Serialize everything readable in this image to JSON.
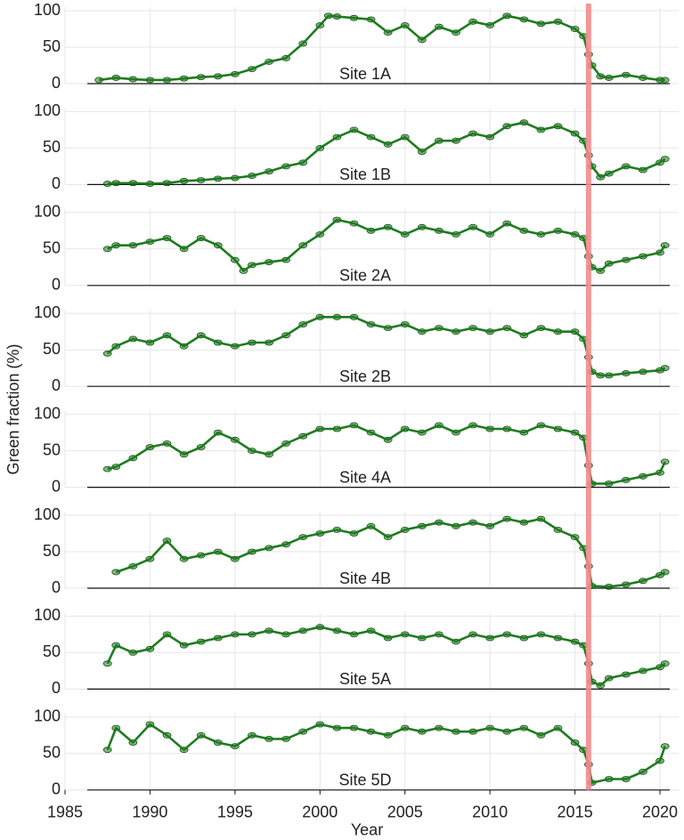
{
  "ylabel": "Green fraction (%)",
  "marker_line": {
    "x": 2015.8,
    "color": "#f28b8b"
  },
  "chart_data": [
    {
      "type": "line",
      "label": "Site 1A",
      "color": "#1e7b1e",
      "xlim": [
        1985,
        2021.1
      ],
      "xticks": [
        1985,
        1990,
        1995,
        2000,
        2005,
        2010,
        2015,
        2020
      ],
      "ylim": [
        0,
        100
      ],
      "yticks": [
        0,
        50,
        100
      ],
      "grid": true,
      "x": [
        1987,
        1988,
        1989,
        1990,
        1991,
        1992,
        1993,
        1994,
        1995,
        1996,
        1997,
        1998,
        1999,
        2000,
        2000.5,
        2001,
        2002,
        2003,
        2004,
        2005,
        2006,
        2007,
        2008,
        2009,
        2010,
        2011,
        2012,
        2013,
        2014,
        2015,
        2015.5,
        2015.8,
        2016,
        2016.5,
        2017,
        2018,
        2019,
        2020,
        2020.3
      ],
      "values": [
        5,
        8,
        6,
        5,
        5,
        7,
        9,
        10,
        13,
        20,
        30,
        35,
        55,
        80,
        93,
        92,
        90,
        88,
        70,
        80,
        60,
        78,
        70,
        85,
        80,
        93,
        88,
        82,
        85,
        75,
        65,
        40,
        25,
        10,
        8,
        12,
        8,
        5,
        5
      ]
    },
    {
      "type": "line",
      "label": "Site 1B",
      "color": "#1e7b1e",
      "xlim": [
        1985,
        2021.1
      ],
      "xticks": [
        1985,
        1990,
        1995,
        2000,
        2005,
        2010,
        2015,
        2020
      ],
      "ylim": [
        0,
        100
      ],
      "yticks": [
        0,
        50,
        100
      ],
      "grid": true,
      "x": [
        1987.5,
        1988,
        1989,
        1990,
        1991,
        1992,
        1993,
        1994,
        1995,
        1996,
        1997,
        1998,
        1999,
        2000,
        2001,
        2002,
        2003,
        2004,
        2005,
        2006,
        2007,
        2008,
        2009,
        2010,
        2011,
        2012,
        2013,
        2014,
        2015,
        2015.5,
        2015.8,
        2016,
        2016.5,
        2017,
        2018,
        2019,
        2020,
        2020.3
      ],
      "values": [
        1,
        2,
        2,
        1,
        2,
        5,
        6,
        8,
        9,
        12,
        18,
        25,
        30,
        50,
        65,
        75,
        65,
        55,
        65,
        45,
        60,
        60,
        70,
        65,
        80,
        85,
        75,
        80,
        70,
        60,
        40,
        25,
        10,
        15,
        25,
        20,
        30,
        35
      ]
    },
    {
      "type": "line",
      "label": "Site 2A",
      "color": "#1e7b1e",
      "xlim": [
        1985,
        2021.1
      ],
      "xticks": [
        1985,
        1990,
        1995,
        2000,
        2005,
        2010,
        2015,
        2020
      ],
      "ylim": [
        0,
        100
      ],
      "yticks": [
        0,
        50,
        100
      ],
      "grid": true,
      "x": [
        1987.5,
        1988,
        1989,
        1990,
        1991,
        1992,
        1993,
        1994,
        1995,
        1995.5,
        1996,
        1997,
        1998,
        1999,
        2000,
        2001,
        2002,
        2003,
        2004,
        2005,
        2006,
        2007,
        2008,
        2009,
        2010,
        2011,
        2012,
        2013,
        2014,
        2015,
        2015.5,
        2015.8,
        2016,
        2016.5,
        2017,
        2018,
        2019,
        2020,
        2020.3
      ],
      "values": [
        50,
        55,
        55,
        60,
        65,
        50,
        65,
        55,
        35,
        20,
        28,
        32,
        35,
        55,
        70,
        90,
        85,
        75,
        80,
        70,
        80,
        75,
        70,
        80,
        70,
        85,
        75,
        70,
        75,
        70,
        65,
        40,
        25,
        20,
        30,
        35,
        40,
        45,
        55
      ]
    },
    {
      "type": "line",
      "label": "Site 2B",
      "color": "#1e7b1e",
      "xlim": [
        1985,
        2021.1
      ],
      "xticks": [
        1985,
        1990,
        1995,
        2000,
        2005,
        2010,
        2015,
        2020
      ],
      "ylim": [
        0,
        100
      ],
      "yticks": [
        0,
        50,
        100
      ],
      "grid": true,
      "x": [
        1987.5,
        1988,
        1989,
        1990,
        1991,
        1992,
        1993,
        1994,
        1995,
        1996,
        1997,
        1998,
        1999,
        2000,
        2001,
        2002,
        2003,
        2004,
        2005,
        2006,
        2007,
        2008,
        2009,
        2010,
        2011,
        2012,
        2013,
        2014,
        2015,
        2015.5,
        2015.8,
        2016,
        2016.5,
        2017,
        2018,
        2019,
        2020,
        2020.3
      ],
      "values": [
        45,
        55,
        65,
        60,
        70,
        55,
        70,
        60,
        55,
        60,
        60,
        70,
        85,
        95,
        95,
        95,
        85,
        80,
        85,
        75,
        80,
        75,
        80,
        75,
        80,
        70,
        80,
        75,
        75,
        65,
        40,
        20,
        15,
        15,
        18,
        20,
        22,
        25
      ]
    },
    {
      "type": "line",
      "label": "Site 4A",
      "color": "#1e7b1e",
      "xlim": [
        1985,
        2021.1
      ],
      "xticks": [
        1985,
        1990,
        1995,
        2000,
        2005,
        2010,
        2015,
        2020
      ],
      "ylim": [
        0,
        100
      ],
      "yticks": [
        0,
        50,
        100
      ],
      "grid": true,
      "x": [
        1987.5,
        1988,
        1989,
        1990,
        1991,
        1992,
        1993,
        1994,
        1995,
        1996,
        1997,
        1998,
        1999,
        2000,
        2001,
        2002,
        2003,
        2004,
        2005,
        2006,
        2007,
        2008,
        2009,
        2010,
        2011,
        2012,
        2013,
        2014,
        2015,
        2015.5,
        2015.8,
        2016,
        2017,
        2018,
        2019,
        2020,
        2020.3
      ],
      "values": [
        25,
        28,
        40,
        55,
        60,
        45,
        55,
        75,
        65,
        50,
        45,
        60,
        70,
        80,
        80,
        85,
        75,
        65,
        80,
        75,
        85,
        75,
        85,
        80,
        80,
        75,
        85,
        80,
        75,
        68,
        30,
        5,
        5,
        10,
        15,
        20,
        35
      ]
    },
    {
      "type": "line",
      "label": "Site 4B",
      "color": "#1e7b1e",
      "xlim": [
        1985,
        2021.1
      ],
      "xticks": [
        1985,
        1990,
        1995,
        2000,
        2005,
        2010,
        2015,
        2020
      ],
      "ylim": [
        0,
        100
      ],
      "yticks": [
        0,
        50,
        100
      ],
      "grid": true,
      "x": [
        1988,
        1989,
        1990,
        1991,
        1992,
        1993,
        1994,
        1995,
        1996,
        1997,
        1998,
        1999,
        2000,
        2001,
        2002,
        2003,
        2004,
        2005,
        2006,
        2007,
        2008,
        2009,
        2010,
        2011,
        2012,
        2013,
        2014,
        2015,
        2015.5,
        2015.8,
        2016,
        2017,
        2018,
        2019,
        2020,
        2020.3
      ],
      "values": [
        22,
        30,
        40,
        65,
        40,
        45,
        50,
        40,
        50,
        55,
        60,
        70,
        75,
        80,
        75,
        85,
        70,
        80,
        85,
        90,
        85,
        90,
        85,
        95,
        90,
        95,
        80,
        70,
        55,
        30,
        3,
        2,
        5,
        10,
        18,
        22
      ]
    },
    {
      "type": "line",
      "label": "Site 5A",
      "color": "#1e7b1e",
      "xlim": [
        1985,
        2021.1
      ],
      "xticks": [
        1985,
        1990,
        1995,
        2000,
        2005,
        2010,
        2015,
        2020
      ],
      "ylim": [
        0,
        100
      ],
      "yticks": [
        0,
        50,
        100
      ],
      "grid": true,
      "x": [
        1987.5,
        1988,
        1989,
        1990,
        1991,
        1992,
        1993,
        1994,
        1995,
        1996,
        1997,
        1998,
        1999,
        2000,
        2001,
        2002,
        2003,
        2004,
        2005,
        2006,
        2007,
        2008,
        2009,
        2010,
        2011,
        2012,
        2013,
        2014,
        2015,
        2015.5,
        2015.8,
        2016,
        2016.5,
        2017,
        2018,
        2019,
        2020,
        2020.3
      ],
      "values": [
        35,
        60,
        50,
        55,
        75,
        60,
        65,
        70,
        75,
        75,
        80,
        75,
        80,
        85,
        80,
        75,
        80,
        70,
        75,
        70,
        75,
        65,
        75,
        70,
        75,
        70,
        75,
        70,
        65,
        60,
        35,
        10,
        5,
        15,
        20,
        25,
        30,
        35
      ]
    },
    {
      "type": "line",
      "label": "Site 5D",
      "color": "#1e7b1e",
      "xlim": [
        1985,
        2021.1
      ],
      "xticks": [
        1985,
        1990,
        1995,
        2000,
        2005,
        2010,
        2015,
        2020
      ],
      "ylim": [
        0,
        100
      ],
      "yticks": [
        0,
        50,
        100
      ],
      "grid": true,
      "xlabel": "Year",
      "x": [
        1987.5,
        1988,
        1989,
        1990,
        1991,
        1992,
        1993,
        1994,
        1995,
        1996,
        1997,
        1998,
        1999,
        2000,
        2001,
        2002,
        2003,
        2004,
        2005,
        2006,
        2007,
        2008,
        2009,
        2010,
        2011,
        2012,
        2013,
        2014,
        2015,
        2015.5,
        2015.8,
        2016,
        2017,
        2018,
        2019,
        2020,
        2020.3
      ],
      "values": [
        55,
        85,
        65,
        90,
        75,
        55,
        75,
        65,
        60,
        75,
        70,
        70,
        80,
        90,
        85,
        85,
        80,
        75,
        85,
        80,
        85,
        80,
        80,
        85,
        80,
        85,
        75,
        85,
        65,
        55,
        35,
        10,
        15,
        15,
        25,
        40,
        60
      ]
    }
  ]
}
